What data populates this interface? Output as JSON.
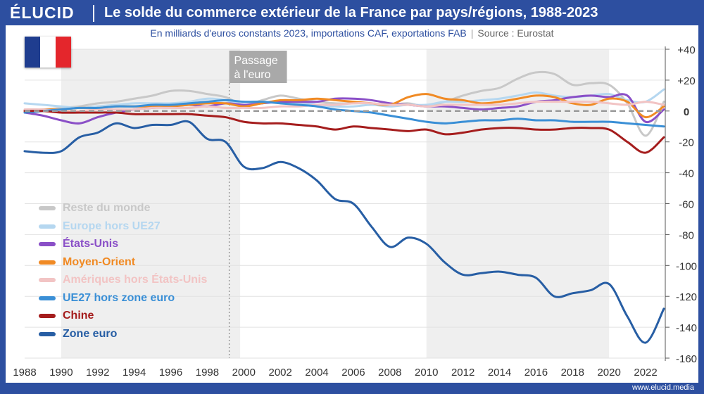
{
  "header": {
    "logo": "ÉLUCID",
    "title": "Le solde du commerce extérieur de la France par pays/régions, 1988-2023",
    "subtitle": "En milliards d'euros constants 2023, importations CAF, exportations FAB",
    "subtitle_sep": "|",
    "source": "Source : Eurostat"
  },
  "flag": {
    "colors": [
      "#1f3d8f",
      "#ffffff",
      "#e4262c"
    ]
  },
  "footer": {
    "url": "www.elucid.media"
  },
  "annotation": {
    "line1": "Passage",
    "line2": "à l'euro",
    "x": 1999.2
  },
  "chart_data": {
    "type": "line",
    "title": "Le solde du commerce extérieur de la France par pays/régions, 1988-2023",
    "xlim": [
      1988,
      2023
    ],
    "ylim": [
      -160,
      40
    ],
    "yticks": [
      40,
      20,
      0,
      -20,
      -40,
      -60,
      -80,
      -100,
      -120,
      -140,
      -160
    ],
    "ytick_labels": [
      "+40",
      "+20",
      "0",
      "-20",
      "-40",
      "-60",
      "-80",
      "-100",
      "-120",
      "-140",
      "-160"
    ],
    "xticks": [
      1988,
      1990,
      1992,
      1994,
      1996,
      1998,
      2000,
      2002,
      2004,
      2006,
      2008,
      2010,
      2012,
      2014,
      2016,
      2018,
      2020,
      2022
    ],
    "xtick_labels": [
      "1988",
      "1990",
      "1992",
      "1994",
      "1996",
      "1998",
      "2000",
      "2002",
      "2004",
      "2006",
      "2008",
      "2010",
      "2012",
      "2014",
      "2016",
      "2018",
      "2020",
      "2022"
    ],
    "recession_bands": [
      [
        1990,
        1999.8
      ],
      [
        2010,
        2020
      ]
    ],
    "x": [
      1988,
      1989,
      1990,
      1991,
      1992,
      1993,
      1994,
      1995,
      1996,
      1997,
      1998,
      1999,
      2000,
      2001,
      2002,
      2003,
      2004,
      2005,
      2006,
      2007,
      2008,
      2009,
      2010,
      2011,
      2012,
      2013,
      2014,
      2015,
      2016,
      2017,
      2018,
      2019,
      2020,
      2021,
      2022,
      2023
    ],
    "series": [
      {
        "name": "Reste du monde",
        "color": "#c8c8c8",
        "values": [
          0,
          1,
          2,
          3,
          5,
          6,
          8,
          10,
          13,
          13,
          11,
          9,
          4,
          7,
          10,
          8,
          6,
          5,
          5,
          5,
          4,
          5,
          3,
          6,
          10,
          13,
          15,
          21,
          25,
          24,
          17,
          18,
          17,
          5,
          -16,
          6
        ]
      },
      {
        "name": "Europe hors UE27",
        "color": "#b5d7f0",
        "values": [
          5,
          4,
          3,
          2,
          3,
          4,
          5,
          5,
          5,
          6,
          8,
          7,
          4,
          5,
          6,
          5,
          4,
          3,
          3,
          4,
          3,
          4,
          4,
          6,
          6,
          7,
          8,
          10,
          12,
          10,
          9,
          10,
          11,
          7,
          6,
          14
        ]
      },
      {
        "name": "États-Unis",
        "color": "#8a4fc7",
        "values": [
          -1,
          -3,
          -6,
          -8,
          -4,
          -1,
          1,
          2,
          3,
          4,
          3,
          5,
          4,
          5,
          6,
          6,
          6,
          8,
          8,
          7,
          5,
          4,
          3,
          3,
          2,
          1,
          2,
          3,
          6,
          7,
          9,
          10,
          9,
          10,
          -7,
          1
        ]
      },
      {
        "name": "Moyen-Orient",
        "color": "#f08a24",
        "values": [
          0,
          1,
          1,
          2,
          2,
          3,
          3,
          3,
          3,
          4,
          5,
          5,
          3,
          5,
          7,
          7,
          8,
          7,
          6,
          5,
          4,
          9,
          11,
          8,
          7,
          5,
          6,
          8,
          10,
          9,
          5,
          4,
          8,
          6,
          -4,
          3
        ]
      },
      {
        "name": "Amériques hors États-Unis",
        "color": "#f2c4c4",
        "values": [
          1,
          1,
          0,
          0,
          1,
          1,
          1,
          2,
          2,
          2,
          3,
          2,
          2,
          2,
          3,
          3,
          4,
          4,
          5,
          5,
          4,
          4,
          3,
          4,
          4,
          4,
          4,
          5,
          6,
          6,
          6,
          6,
          5,
          4,
          6,
          4
        ]
      },
      {
        "name": "UE27 hors zone euro",
        "color": "#3a8fd6",
        "values": [
          -1,
          0,
          1,
          2,
          2,
          3,
          3,
          4,
          4,
          5,
          6,
          7,
          6,
          6,
          5,
          4,
          3,
          1,
          0,
          -1,
          -3,
          -5,
          -7,
          -8,
          -7,
          -6,
          -6,
          -5,
          -6,
          -6,
          -7,
          -7,
          -7,
          -8,
          -9,
          -10
        ]
      },
      {
        "name": "Chine",
        "color": "#a51d1d",
        "values": [
          0,
          0,
          -1,
          -1,
          -1,
          -1,
          -2,
          -2,
          -2,
          -2,
          -3,
          -4,
          -7,
          -8,
          -8,
          -9,
          -10,
          -12,
          -10,
          -11,
          -12,
          -13,
          -12,
          -15,
          -14,
          -12,
          -11,
          -11,
          -12,
          -12,
          -11,
          -11,
          -12,
          -20,
          -27,
          -17
        ]
      },
      {
        "name": "Zone euro",
        "color": "#275ea4",
        "values": [
          -26,
          -27,
          -26,
          -17,
          -14,
          -8,
          -11,
          -9,
          -9,
          -7,
          -18,
          -20,
          -36,
          -37,
          -33,
          -37,
          -45,
          -57,
          -60,
          -75,
          -88,
          -82,
          -86,
          -98,
          -106,
          -105,
          -104,
          -106,
          -108,
          -120,
          -118,
          -116,
          -112,
          -133,
          -150,
          -128
        ]
      }
    ]
  }
}
